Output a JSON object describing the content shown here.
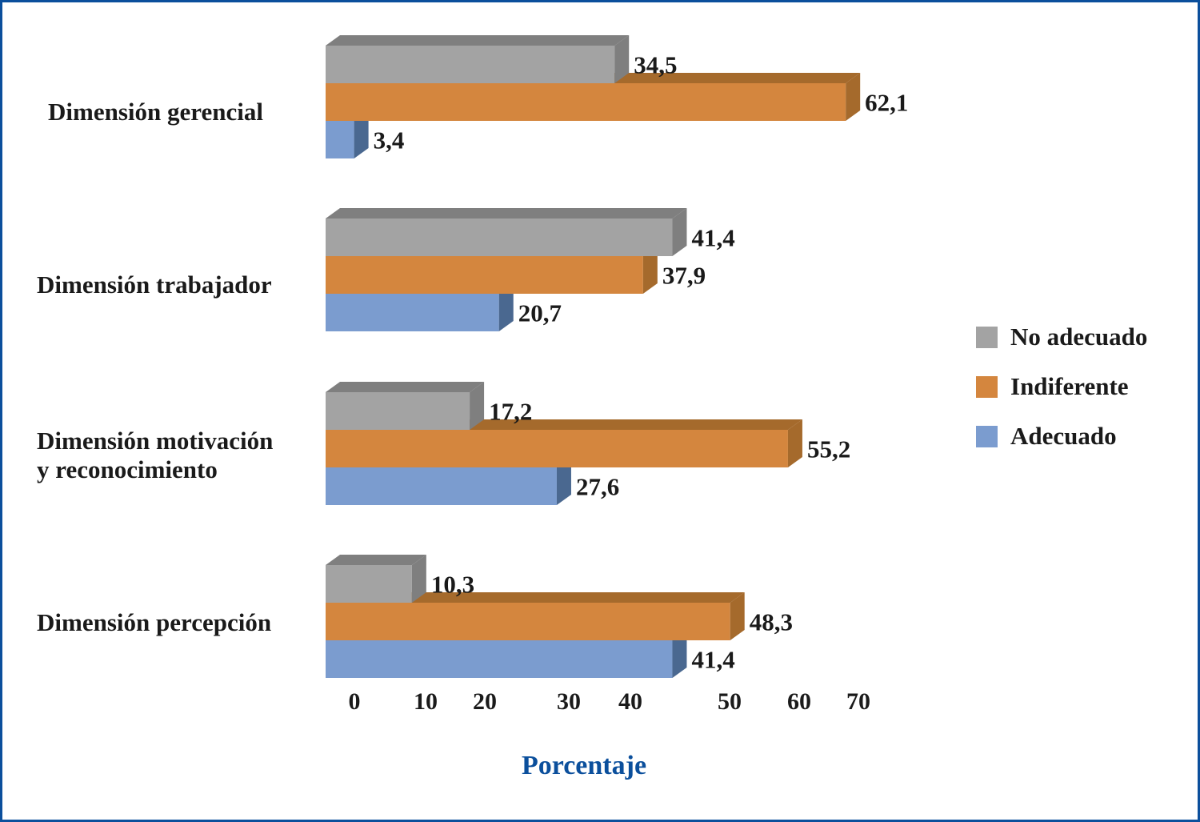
{
  "chart_data": {
    "type": "bar",
    "orientation": "horizontal",
    "style": "3d",
    "categories": [
      "Dimensión gerencial",
      "Dimensión trabajador",
      "Dimensión motivación y reconocimiento",
      "Dimensión percepción"
    ],
    "category_lines": [
      [
        "Dimensión gerencial"
      ],
      [
        "Dimensión trabajador"
      ],
      [
        "Dimensión motivación",
        "y reconocimiento"
      ],
      [
        "Dimensión percepción"
      ]
    ],
    "series": [
      {
        "name": "No adecuado",
        "color": "#a3a3a3",
        "side_color": "#7f7f7f",
        "values": [
          34.5,
          41.4,
          17.2,
          10.3
        ],
        "labels": [
          "34,5",
          "41,4",
          "17,2",
          "10,3"
        ]
      },
      {
        "name": "Indiferente",
        "color": "#d4863e",
        "side_color": "#a56a2c",
        "values": [
          62.1,
          37.9,
          55.2,
          48.3
        ],
        "labels": [
          "62,1",
          "37,9",
          "55,2",
          "48,3"
        ]
      },
      {
        "name": "Adecuado",
        "color": "#7b9ccf",
        "side_color": "#4a6890",
        "values": [
          3.4,
          20.7,
          27.6,
          41.4
        ],
        "labels": [
          "3,4",
          "20,7",
          "27,6",
          "41,4"
        ]
      }
    ],
    "x_ticks": [
      "0",
      "10",
      "20",
      "30",
      "40",
      "50",
      "60",
      "70"
    ],
    "xlabel": "Porcentaje",
    "ylabel": "",
    "xlim": [
      0,
      70
    ],
    "grid": false,
    "legend_position": "right"
  },
  "colors": {
    "frame": "#0b4f9c",
    "xlabel": "#0b4f9c"
  }
}
